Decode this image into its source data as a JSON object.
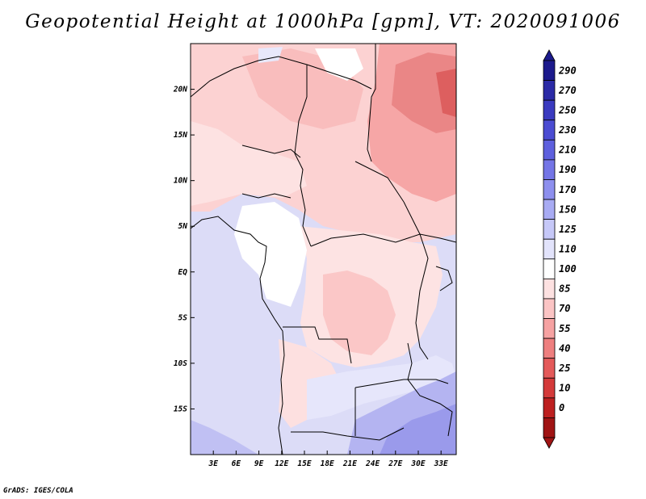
{
  "title": "Geopotential Height at 1000hPa [gpm], VT: 2020091006",
  "credit": "GrADS: IGES/COLA",
  "map": {
    "x_ticks": [
      "3E",
      "6E",
      "9E",
      "12E",
      "15E",
      "18E",
      "21E",
      "24E",
      "27E",
      "30E",
      "33E"
    ],
    "x_tick_values": [
      3,
      6,
      9,
      12,
      15,
      18,
      21,
      24,
      27,
      30,
      33
    ],
    "y_ticks": [
      "20N",
      "15N",
      "10N",
      "5N",
      "EQ",
      "5S",
      "10S",
      "15S"
    ],
    "y_tick_values": [
      20,
      15,
      10,
      5,
      0,
      -5,
      -10,
      -15
    ],
    "lon_range": [
      0,
      35
    ],
    "lat_range": [
      -20,
      25
    ]
  },
  "colorbar": {
    "labels": [
      "290",
      "270",
      "250",
      "230",
      "210",
      "190",
      "170",
      "150",
      "125",
      "110",
      "100",
      "85",
      "70",
      "55",
      "40",
      "25",
      "10",
      "0"
    ],
    "colors": [
      "#1c1a8c",
      "#2b2aa6",
      "#3a3abf",
      "#4b4cd2",
      "#5e60de",
      "#7475e6",
      "#8d8fee",
      "#a8abf3",
      "#c6c8f8",
      "#e2e3fb",
      "#ffffff",
      "#fde1e1",
      "#fbc4c4",
      "#f6a2a2",
      "#ee7f7f",
      "#e45a5a",
      "#d43a3a",
      "#bd2020",
      "#a01414"
    ]
  }
}
